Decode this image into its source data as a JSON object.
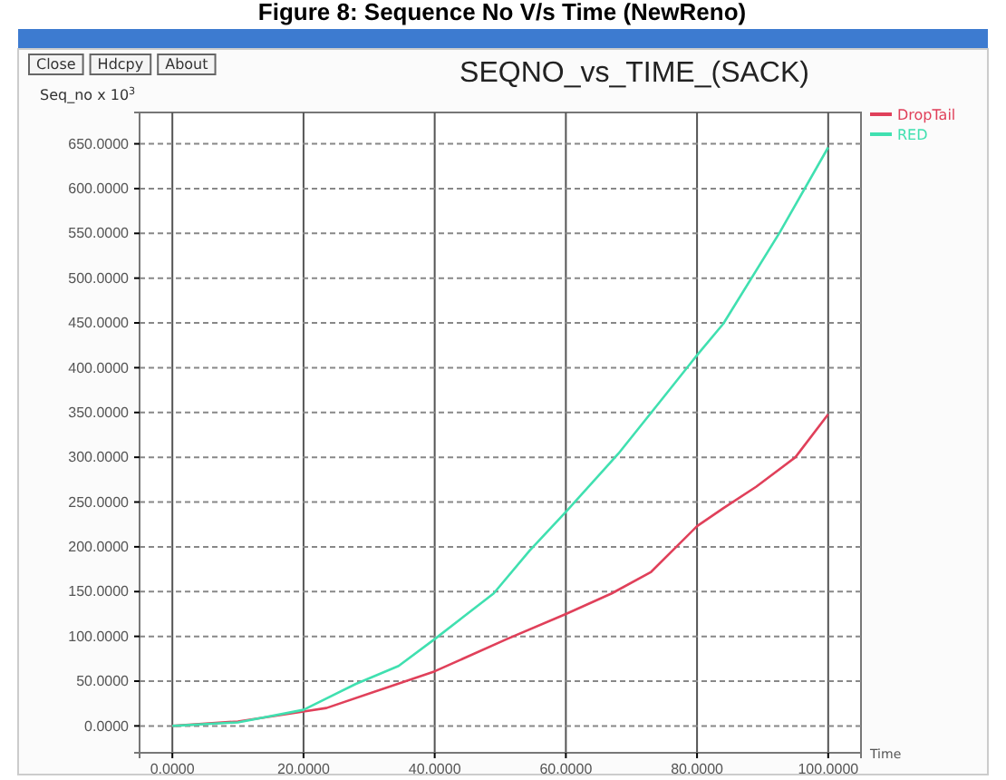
{
  "chart_data": {
    "type": "line",
    "title": "SEQNO_vs_TIME_(SACK)",
    "subtitle": "Figure 8: Sequence No V/s Time (NewReno)",
    "xlabel": "Time",
    "ylabel": "Seq_no x 10$^{3}$",
    "annotations": [
      "Close",
      "Hdcpy",
      "About"
    ],
    "xlim": [
      -5,
      105
    ],
    "ylim": [
      -30,
      685
    ],
    "xticks": [
      {
        "value": 0,
        "label": "0.0000"
      },
      {
        "value": 20,
        "label": "20.0000"
      },
      {
        "value": 40,
        "label": "40.0000"
      },
      {
        "value": 60,
        "label": "60.0000"
      },
      {
        "value": 80,
        "label": "80.0000"
      },
      {
        "value": 100,
        "label": "100.0000"
      }
    ],
    "yticks": [
      {
        "value": 0,
        "label": "0.0000"
      },
      {
        "value": 50,
        "label": "50.0000"
      },
      {
        "value": 100,
        "label": "100.0000"
      },
      {
        "value": 150,
        "label": "150.0000"
      },
      {
        "value": 200,
        "label": "200.0000"
      },
      {
        "value": 250,
        "label": "250.0000"
      },
      {
        "value": 300,
        "label": "300.0000"
      },
      {
        "value": 350,
        "label": "350.0000"
      },
      {
        "value": 400,
        "label": "400.0000"
      },
      {
        "value": 450,
        "label": "450.0000"
      },
      {
        "value": 500,
        "label": "500.0000"
      },
      {
        "value": 550,
        "label": "550.0000"
      },
      {
        "value": 600,
        "label": "600.0000"
      },
      {
        "value": 650,
        "label": "650.0000"
      }
    ],
    "grid": true,
    "legend": "right",
    "line_style": "solid",
    "marker": "none",
    "series": [
      {
        "name": "DropTail",
        "color": "#e0405a",
        "x": [
          0,
          10,
          20,
          23.5,
          40,
          51,
          60,
          67,
          73,
          80,
          84,
          89,
          95,
          100
        ],
        "values": [
          0,
          5,
          16,
          20,
          61,
          97,
          125,
          148,
          172,
          223,
          243,
          267,
          300,
          348
        ]
      },
      {
        "name": "RED",
        "color": "#40e0b0",
        "x": [
          0,
          10,
          20,
          28,
          34.5,
          40,
          49,
          54.5,
          60,
          68,
          75,
          80,
          84,
          92.6,
          100
        ],
        "values": [
          0,
          4,
          18,
          47,
          67,
          97,
          148,
          196,
          239,
          304,
          368,
          414,
          449,
          551,
          646
        ]
      }
    ]
  }
}
